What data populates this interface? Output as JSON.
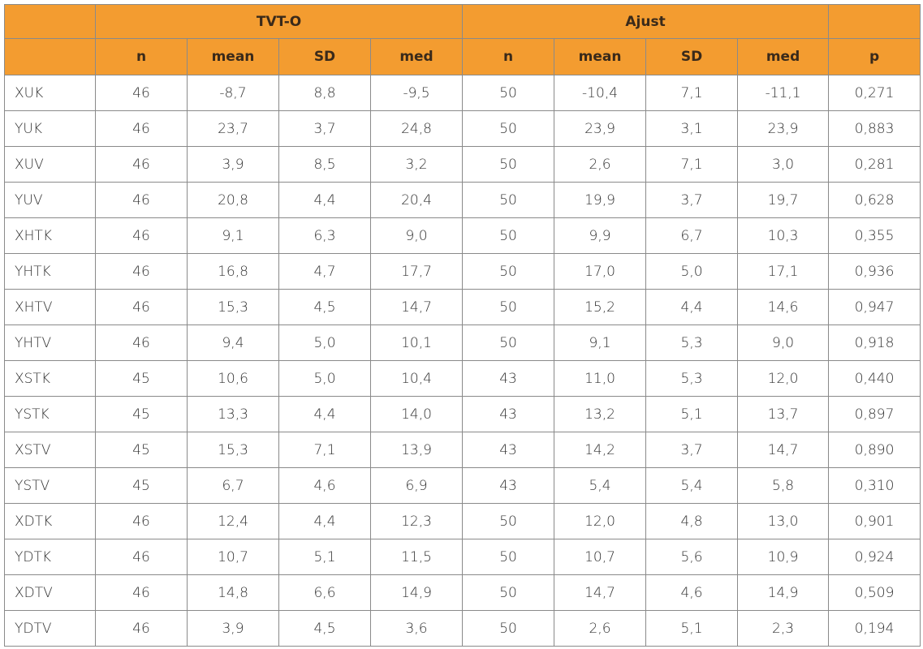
{
  "header": {
    "groups": [
      "TVT-O",
      "Ajust"
    ],
    "columns": [
      "n",
      "mean",
      "SD",
      "med",
      "n",
      "mean",
      "SD",
      "med",
      "p"
    ]
  },
  "table": {
    "rows": [
      [
        "XUK",
        "46",
        "-8,7",
        "8,8",
        "-9,5",
        "50",
        "-10,4",
        "7,1",
        "-11,1",
        "0,271"
      ],
      [
        "YUK",
        "46",
        "23,7",
        "3,7",
        "24,8",
        "50",
        "23,9",
        "3,1",
        "23,9",
        "0,883"
      ],
      [
        "XUV",
        "46",
        "3,9",
        "8,5",
        "3,2",
        "50",
        "2,6",
        "7,1",
        "3,0",
        "0,281"
      ],
      [
        "YUV",
        "46",
        "20,8",
        "4,4",
        "20,4",
        "50",
        "19,9",
        "3,7",
        "19,7",
        "0,628"
      ],
      [
        "XHTK",
        "46",
        "9,1",
        "6,3",
        "9,0",
        "50",
        "9,9",
        "6,7",
        "10,3",
        "0,355"
      ],
      [
        "YHTK",
        "46",
        "16,8",
        "4,7",
        "17,7",
        "50",
        "17,0",
        "5,0",
        "17,1",
        "0,936"
      ],
      [
        "XHTV",
        "46",
        "15,3",
        "4,5",
        "14,7",
        "50",
        "15,2",
        "4,4",
        "14,6",
        "0,947"
      ],
      [
        "YHTV",
        "46",
        "9,4",
        "5,0",
        "10,1",
        "50",
        "9,1",
        "5,3",
        "9,0",
        "0,918"
      ],
      [
        "XSTK",
        "45",
        "10,6",
        "5,0",
        "10,4",
        "43",
        "11,0",
        "5,3",
        "12,0",
        "0,440"
      ],
      [
        "YSTK",
        "45",
        "13,3",
        "4,4",
        "14,0",
        "43",
        "13,2",
        "5,1",
        "13,7",
        "0,897"
      ],
      [
        "XSTV",
        "45",
        "15,3",
        "7,1",
        "13,9",
        "43",
        "14,2",
        "3,7",
        "14,7",
        "0,890"
      ],
      [
        "YSTV",
        "45",
        "6,7",
        "4,6",
        "6,9",
        "43",
        "5,4",
        "5,4",
        "5,8",
        "0,310"
      ],
      [
        "XDTK",
        "46",
        "12,4",
        "4,4",
        "12,3",
        "50",
        "12,0",
        "4,8",
        "13,0",
        "0,901"
      ],
      [
        "YDTK",
        "46",
        "10,7",
        "5,1",
        "11,5",
        "50",
        "10,7",
        "5,6",
        "10,9",
        "0,924"
      ],
      [
        "XDTV",
        "46",
        "14,8",
        "6,6",
        "14,9",
        "50",
        "14,7",
        "4,6",
        "14,9",
        "0,509"
      ],
      [
        "YDTV",
        "46",
        "3,9",
        "4,5",
        "3,6",
        "50",
        "2,6",
        "5,1",
        "2,3",
        "0,194"
      ]
    ]
  }
}
